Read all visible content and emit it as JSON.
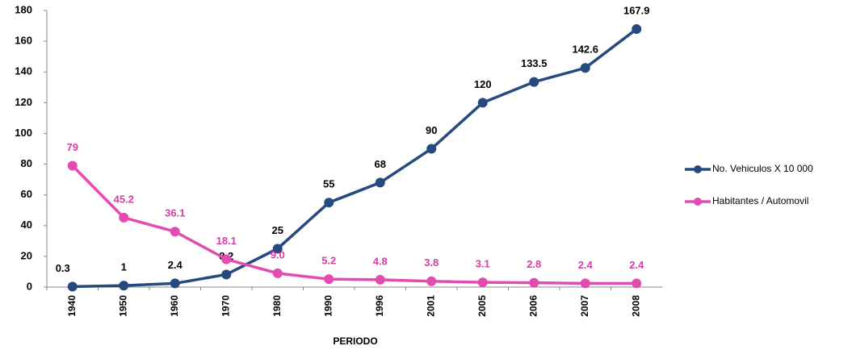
{
  "chart_data": {
    "type": "line",
    "x_label": "PERIODO",
    "categories": [
      "1940",
      "1950",
      "1960",
      "1970",
      "1980",
      "1990",
      "1996",
      "2001",
      "2005",
      "2006",
      "2007",
      "2008"
    ],
    "series": [
      {
        "name": "No. Vehiculos X 10 000",
        "color": "#264a7e",
        "label_color": "#000000",
        "values": [
          0.3,
          1,
          2.4,
          8.2,
          25,
          55,
          68,
          90,
          120,
          133.5,
          142.6,
          167.9
        ]
      },
      {
        "name": "Habitantes / Automovil",
        "color": "#e24cb0",
        "label_color": "#d63ea6",
        "values": [
          79,
          45.2,
          36.1,
          18.1,
          9,
          5.2,
          4.8,
          3.8,
          3.1,
          2.8,
          2.4,
          2.4
        ],
        "value_labels": [
          "79",
          "45.2",
          "36.1",
          "18.1",
          "9.0",
          "5.2",
          "4.8",
          "3.8",
          "3.1",
          "2.8",
          "2.4",
          "2.4"
        ]
      }
    ],
    "ylim": [
      0,
      180
    ],
    "yticks": [
      0,
      20,
      40,
      60,
      80,
      100,
      120,
      140,
      160,
      180
    ],
    "grid": false,
    "legend": "right"
  }
}
